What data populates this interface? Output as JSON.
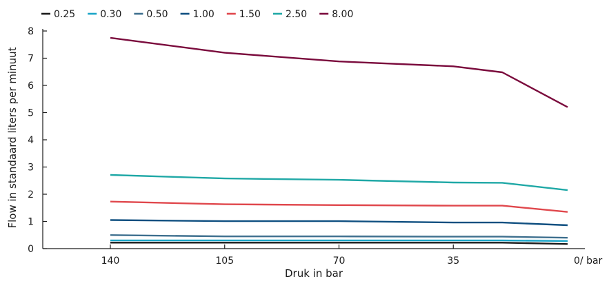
{
  "chart_data": {
    "type": "line",
    "title": "",
    "xlabel": "Druk in bar",
    "ylabel": "Flow in standaard liters per minuut",
    "x_unit_label": "0/ bar",
    "x": [
      140,
      105,
      70,
      35,
      20,
      0
    ],
    "x_tick_labels": [
      "140",
      "105",
      "70",
      "35"
    ],
    "x_reversed": true,
    "xlim": [
      140,
      0
    ],
    "ylim": [
      0,
      8
    ],
    "y_ticks": [
      0,
      1,
      2,
      3,
      4,
      5,
      6,
      7,
      8
    ],
    "grid": false,
    "legend_position": "top-left",
    "series": [
      {
        "name": "0.25",
        "color": "#1a1a1a",
        "values": [
          0.22,
          0.22,
          0.22,
          0.22,
          0.22,
          0.17
        ]
      },
      {
        "name": "0.30",
        "color": "#1aa5c8",
        "values": [
          0.3,
          0.3,
          0.3,
          0.3,
          0.3,
          0.28
        ]
      },
      {
        "name": "0.50",
        "color": "#3d6f8e",
        "values": [
          0.5,
          0.45,
          0.45,
          0.44,
          0.44,
          0.4
        ]
      },
      {
        "name": "1.00",
        "color": "#0f4f80",
        "values": [
          1.05,
          1.01,
          1.01,
          0.96,
          0.96,
          0.86
        ]
      },
      {
        "name": "1.50",
        "color": "#e0474c",
        "values": [
          1.73,
          1.63,
          1.6,
          1.58,
          1.58,
          1.35
        ]
      },
      {
        "name": "2.50",
        "color": "#1fa8a6",
        "values": [
          2.71,
          2.58,
          2.53,
          2.43,
          2.42,
          2.15
        ]
      },
      {
        "name": "8.00",
        "color": "#7a0a3c",
        "values": [
          7.75,
          7.2,
          6.88,
          6.7,
          6.48,
          5.2
        ]
      }
    ]
  }
}
